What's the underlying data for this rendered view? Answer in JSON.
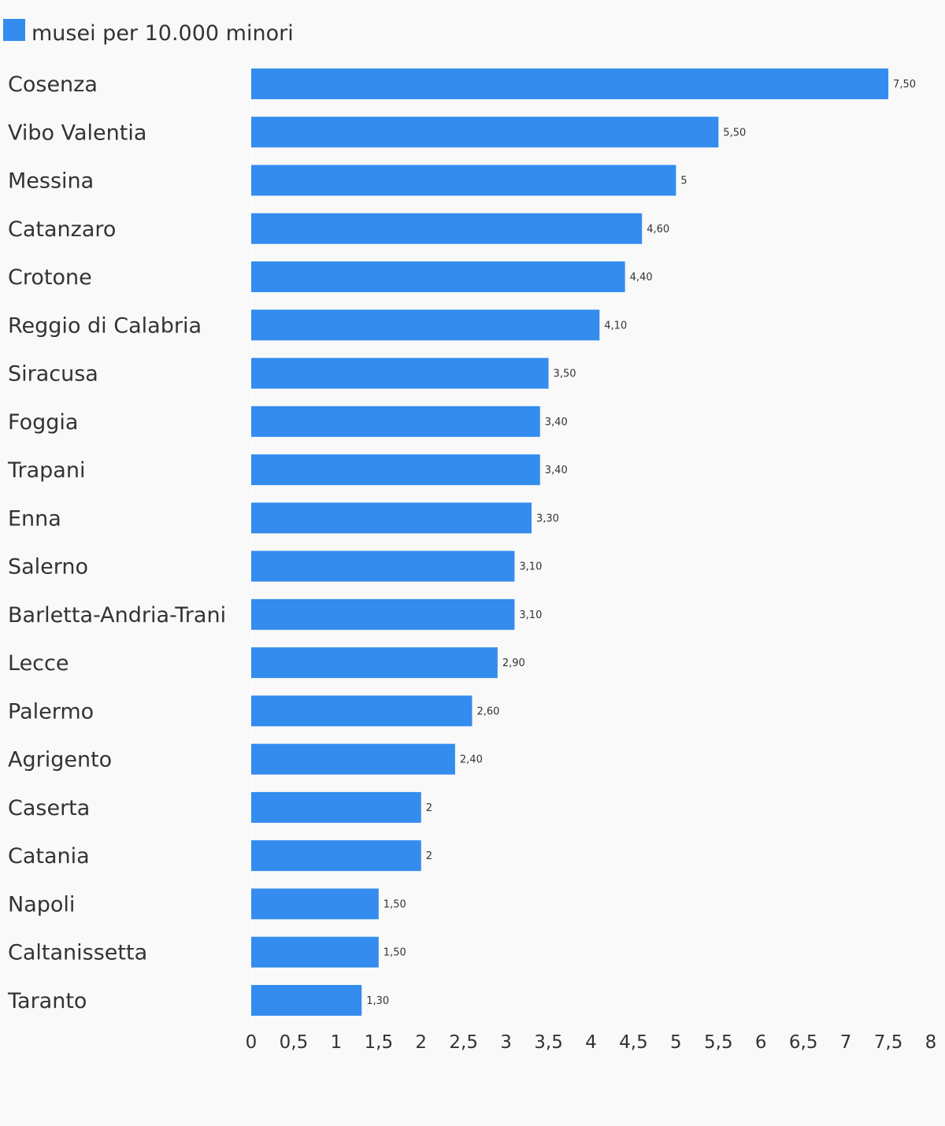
{
  "chart_data": {
    "type": "bar",
    "orientation": "horizontal",
    "legend_position": "top-left",
    "grid": false,
    "series": [
      {
        "name": "musei per 10.000 minori",
        "color": "#338cee",
        "values": [
          7.5,
          5.5,
          5,
          4.6,
          4.4,
          4.1,
          3.5,
          3.4,
          3.4,
          3.3,
          3.1,
          3.1,
          2.9,
          2.6,
          2.4,
          2,
          2,
          1.5,
          1.5,
          1.3
        ],
        "value_labels": [
          "7,50",
          "5,50",
          "5",
          "4,60",
          "4,40",
          "4,10",
          "3,50",
          "3,40",
          "3,40",
          "3,30",
          "3,10",
          "3,10",
          "2,90",
          "2,60",
          "2,40",
          "2",
          "2",
          "1,50",
          "1,50",
          "1,30"
        ]
      }
    ],
    "categories": [
      "Cosenza",
      "Vibo Valentia",
      "Messina",
      "Catanzaro",
      "Crotone",
      "Reggio di Calabria",
      "Siracusa",
      "Foggia",
      "Trapani",
      "Enna",
      "Salerno",
      "Barletta-Andria-Trani",
      "Lecce",
      "Palermo",
      "Agrigento",
      "Caserta",
      "Catania",
      "Napoli",
      "Caltanissetta",
      "Taranto"
    ],
    "xlim": [
      0,
      8
    ],
    "x_ticks": [
      0,
      0.5,
      1,
      1.5,
      2,
      2.5,
      3,
      3.5,
      4,
      4.5,
      5,
      5.5,
      6,
      6.5,
      7,
      7.5,
      8
    ],
    "x_tick_labels": [
      "0",
      "0,5",
      "1",
      "1,5",
      "2",
      "2,5",
      "3",
      "3,5",
      "4",
      "4,5",
      "5",
      "5,5",
      "6",
      "6,5",
      "7",
      "7,5",
      "8"
    ],
    "title": "",
    "xlabel": "",
    "ylabel": ""
  }
}
